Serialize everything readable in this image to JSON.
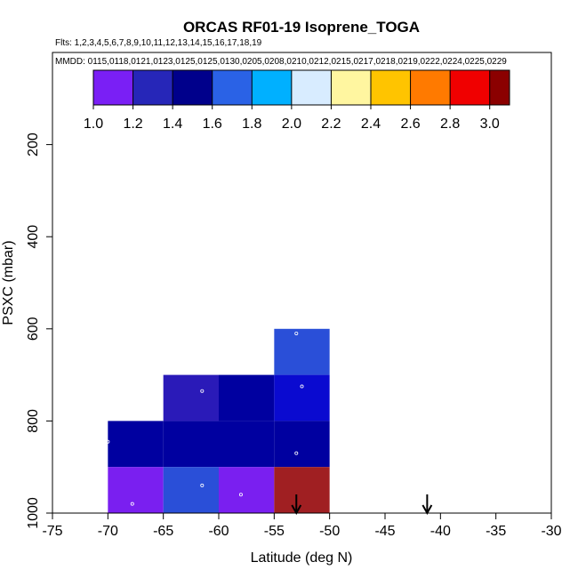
{
  "chart_data": {
    "type": "heatmap",
    "title": "ORCAS RF01-19 Isoprene_TOGA",
    "flights_text": "Flts: 1,2,3,4,5,6,7,8,9,10,11,12,13,14,15,16,17,18,19",
    "dates_text": "MMDD: 0115,0118,0121,0123,0125,0125,0130,0205,0208,0210,0212,0215,0217,0218,0219,0222,0224,0225,0229",
    "xlabel": "Latitude (deg N)",
    "ylabel": "PSXC (mbar)",
    "xlim": [
      -75,
      -30
    ],
    "ylim": [
      1000,
      0
    ],
    "xticks": [
      -75,
      -70,
      -65,
      -60,
      -55,
      -50,
      -45,
      -40,
      -35,
      -30
    ],
    "yticks": [
      200,
      400,
      600,
      800,
      1000
    ],
    "grid": false,
    "colorbar": {
      "range": [
        1.0,
        3.1
      ],
      "ticks": [
        1.0,
        1.2,
        1.4,
        1.6,
        1.8,
        2.0,
        2.2,
        2.4,
        2.6,
        2.8,
        3.0
      ],
      "tick_labels": [
        "1.0",
        "1.2",
        "1.4",
        "1.6",
        "1.8",
        "2.0",
        "2.2",
        "2.4",
        "2.6",
        "2.8",
        "3.0"
      ],
      "colors": [
        "#7a1ff5",
        "#2626b8",
        "#00008b",
        "#2a62e6",
        "#00b0ff",
        "#d8ecff",
        "#fff6a0",
        "#ffc400",
        "#ff7a00",
        "#f00000",
        "#8b0000"
      ],
      "boundaries": [
        1.0,
        1.2,
        1.4,
        1.6,
        1.8,
        2.0,
        2.2,
        2.4,
        2.6,
        2.8,
        3.0,
        3.1
      ]
    },
    "cells": [
      {
        "lat": [
          -55,
          -50
        ],
        "p": [
          600,
          700
        ],
        "value": 1.45,
        "color": "#2a4fd8"
      },
      {
        "lat": [
          -65,
          -60
        ],
        "p": [
          700,
          800
        ],
        "value": 1.15,
        "color": "#2a1ab8"
      },
      {
        "lat": [
          -60,
          -55
        ],
        "p": [
          700,
          800
        ],
        "value": 1.3,
        "color": "#0000a0"
      },
      {
        "lat": [
          -55,
          -50
        ],
        "p": [
          700,
          800
        ],
        "value": 1.35,
        "color": "#0a0ad0"
      },
      {
        "lat": [
          -70,
          -65
        ],
        "p": [
          800,
          900
        ],
        "value": 1.3,
        "color": "#0000a0"
      },
      {
        "lat": [
          -65,
          -60
        ],
        "p": [
          800,
          900
        ],
        "value": 1.3,
        "color": "#0000a0"
      },
      {
        "lat": [
          -60,
          -55
        ],
        "p": [
          800,
          900
        ],
        "value": 1.3,
        "color": "#0000a0"
      },
      {
        "lat": [
          -55,
          -50
        ],
        "p": [
          800,
          900
        ],
        "value": 1.3,
        "color": "#0000a0"
      },
      {
        "lat": [
          -70,
          -65
        ],
        "p": [
          900,
          1000
        ],
        "value": 1.05,
        "color": "#7a1ff0"
      },
      {
        "lat": [
          -65,
          -60
        ],
        "p": [
          900,
          1000
        ],
        "value": 1.45,
        "color": "#2a4fd8"
      },
      {
        "lat": [
          -60,
          -55
        ],
        "p": [
          900,
          1000
        ],
        "value": 1.05,
        "color": "#7a1ff0"
      },
      {
        "lat": [
          -55,
          -50
        ],
        "p": [
          900,
          1000
        ],
        "value": 3.05,
        "color": "#a01f22"
      }
    ],
    "points": [
      {
        "lat": -53.0,
        "p": 610
      },
      {
        "lat": -52.5,
        "p": 725
      },
      {
        "lat": -61.5,
        "p": 735
      },
      {
        "lat": -70.0,
        "p": 845
      },
      {
        "lat": -53.0,
        "p": 870
      },
      {
        "lat": -61.5,
        "p": 940
      },
      {
        "lat": -58.0,
        "p": 960
      },
      {
        "lat": -67.8,
        "p": 980
      }
    ],
    "arrows": [
      -53.0,
      -41.2
    ]
  }
}
